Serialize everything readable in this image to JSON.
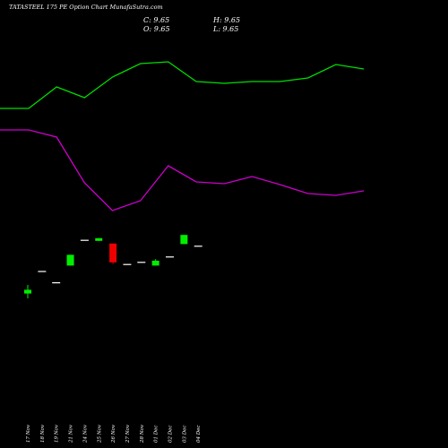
{
  "header": {
    "title": "TATASTEEL 175 PE Option Chart MunafaSutra.com",
    "c": "C: 9.65",
    "h": "H: 9.65",
    "o": "O: 9.65",
    "l": "L: 9.65"
  },
  "colors": {
    "background": "#000000",
    "upper_line": "#00dd00",
    "lower_line": "#cc00cc",
    "bull": "#00ee00",
    "bear": "#ee0000",
    "neutral": "#ffffff"
  },
  "chart_data": {
    "type": "candlestick",
    "categories": [
      "17 Nov",
      "18 Nov",
      "19 Nov",
      "21 Nov",
      "24 Nov",
      "25 Nov",
      "26 Nov",
      "27 Nov",
      "28 Nov",
      "01 Dec",
      "02 Dec",
      "03 Dec",
      "04 Dec"
    ],
    "candles": [
      {
        "open": 5.2,
        "close": 5.55,
        "high": 6.0,
        "low": 4.75,
        "color": "green"
      },
      {
        "open": 7.3,
        "close": 7.3,
        "high": 7.3,
        "low": 7.3,
        "color": "white"
      },
      {
        "open": 6.25,
        "close": 6.25,
        "high": 6.25,
        "low": 6.25,
        "color": "white"
      },
      {
        "open": 7.8,
        "close": 8.8,
        "high": 8.8,
        "low": 7.8,
        "color": "green"
      },
      {
        "open": 10.2,
        "close": 10.2,
        "high": 10.2,
        "low": 10.2,
        "color": "white"
      },
      {
        "open": 10.1,
        "close": 10.35,
        "high": 10.35,
        "low": 10.1,
        "color": "green"
      },
      {
        "open": 9.85,
        "close": 8.1,
        "high": 9.85,
        "low": 7.95,
        "color": "red"
      },
      {
        "open": 7.95,
        "close": 7.95,
        "high": 7.95,
        "low": 7.95,
        "color": "white"
      },
      {
        "open": 8.15,
        "close": 8.15,
        "high": 8.15,
        "low": 8.15,
        "color": "white"
      },
      {
        "open": 7.8,
        "close": 8.25,
        "high": 8.4,
        "low": 7.8,
        "color": "green"
      },
      {
        "open": 8.65,
        "close": 8.65,
        "high": 8.65,
        "low": 8.65,
        "color": "white"
      },
      {
        "open": 9.8,
        "close": 10.65,
        "high": 10.65,
        "low": 9.8,
        "color": "green"
      },
      {
        "open": 9.65,
        "close": 9.65,
        "high": 9.65,
        "low": 9.65,
        "color": "white"
      }
    ],
    "upper_line": [
      121,
      121,
      97,
      109,
      86,
      71,
      69,
      91,
      93,
      91,
      91,
      87,
      72,
      77
    ],
    "lower_line": [
      145,
      145,
      153,
      204,
      235,
      224,
      185,
      203,
      205,
      197,
      206,
      216,
      218,
      213
    ],
    "ylim": [
      0,
      15
    ]
  }
}
